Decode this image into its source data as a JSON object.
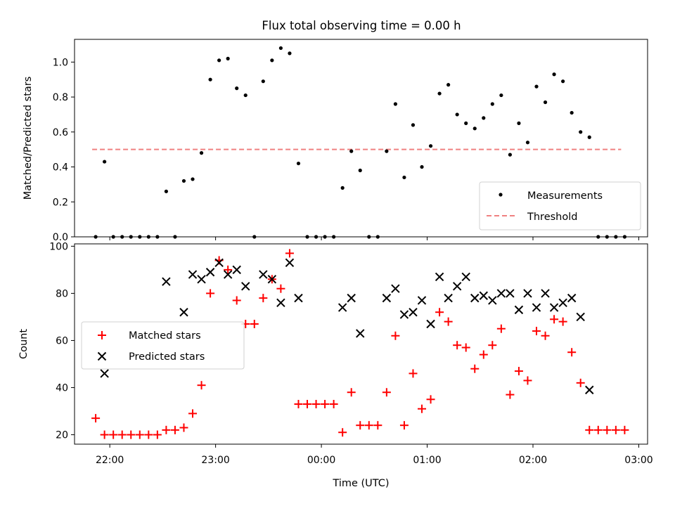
{
  "title": "Flux total observing time = 0.00 h",
  "chart_data": [
    {
      "type": "scatter",
      "ylabel": "Matched/Predicted stars",
      "ylim": [
        0,
        1.13
      ],
      "yticks": [
        "0.0",
        "0.2",
        "0.4",
        "0.6",
        "0.8",
        "1.0"
      ],
      "legend": {
        "placement": "lower-right",
        "entries": [
          {
            "label": "Measurements",
            "marker": "dot",
            "color": "#000000"
          },
          {
            "label": "Threshold",
            "marker": "dashed-line",
            "color": "#f08080"
          }
        ]
      },
      "threshold": {
        "value": 0.5,
        "x_start": "21:50",
        "x_end": "02:50"
      },
      "series": [
        {
          "name": "Measurements",
          "color": "#000000",
          "x": [
            "21:52",
            "21:57",
            "22:02",
            "22:07",
            "22:12",
            "22:17",
            "22:22",
            "22:27",
            "22:32",
            "22:37",
            "22:42",
            "22:47",
            "22:52",
            "22:57",
            "23:02",
            "23:07",
            "23:12",
            "23:17",
            "23:22",
            "23:27",
            "23:32",
            "23:37",
            "23:42",
            "23:47",
            "23:52",
            "23:57",
            "00:02",
            "00:07",
            "00:12",
            "00:17",
            "00:22",
            "00:27",
            "00:32",
            "00:37",
            "00:42",
            "00:47",
            "00:52",
            "00:57",
            "01:02",
            "01:07",
            "01:12",
            "01:17",
            "01:22",
            "01:27",
            "01:32",
            "01:37",
            "01:42",
            "01:47",
            "01:52",
            "01:57",
            "02:02",
            "02:07",
            "02:12",
            "02:17",
            "02:22",
            "02:27",
            "02:32",
            "02:37",
            "02:42",
            "02:47",
            "02:52"
          ],
          "y": [
            0.0,
            0.43,
            0.0,
            0.0,
            0.0,
            0.0,
            0.0,
            0.0,
            0.26,
            0.0,
            0.32,
            0.33,
            0.48,
            0.9,
            1.01,
            1.02,
            0.85,
            0.81,
            0.0,
            0.89,
            1.01,
            1.08,
            1.05,
            0.42,
            0.0,
            0.0,
            0.0,
            0.0,
            0.28,
            0.49,
            0.38,
            0.0,
            0.0,
            0.49,
            0.76,
            0.34,
            0.64,
            0.4,
            0.52,
            0.82,
            0.87,
            0.7,
            0.65,
            0.62,
            0.68,
            0.76,
            0.81,
            0.47,
            0.65,
            0.54,
            0.86,
            0.77,
            0.93,
            0.89,
            0.71,
            0.6,
            0.57,
            0.0,
            0.0,
            0.0,
            0.0
          ]
        }
      ]
    },
    {
      "type": "scatter",
      "xlabel": "Time (UTC)",
      "ylabel": "Count",
      "ylim": [
        16,
        101
      ],
      "yticks": [
        "20",
        "40",
        "60",
        "80",
        "100"
      ],
      "xlim": [
        "21:40",
        "03:05"
      ],
      "xticks": [
        "22:00",
        "23:00",
        "00:00",
        "01:00",
        "02:00",
        "03:00"
      ],
      "legend": {
        "placement": "center-left",
        "entries": [
          {
            "label": "Matched stars",
            "marker": "plus",
            "color": "#ff0000"
          },
          {
            "label": "Predicted stars",
            "marker": "x",
            "color": "#000000"
          }
        ]
      },
      "series": [
        {
          "name": "Matched stars",
          "marker": "plus",
          "color": "#ff0000",
          "x": [
            "21:52",
            "21:57",
            "22:02",
            "22:07",
            "22:12",
            "22:17",
            "22:22",
            "22:27",
            "22:32",
            "22:37",
            "22:42",
            "22:47",
            "22:52",
            "22:57",
            "23:02",
            "23:07",
            "23:12",
            "23:17",
            "23:22",
            "23:27",
            "23:32",
            "23:37",
            "23:42",
            "23:47",
            "23:52",
            "23:57",
            "00:02",
            "00:07",
            "00:12",
            "00:17",
            "00:22",
            "00:27",
            "00:32",
            "00:37",
            "00:42",
            "00:47",
            "00:52",
            "00:57",
            "01:02",
            "01:07",
            "01:12",
            "01:17",
            "01:22",
            "01:27",
            "01:32",
            "01:37",
            "01:42",
            "01:47",
            "01:52",
            "01:57",
            "02:02",
            "02:07",
            "02:12",
            "02:17",
            "02:22",
            "02:27",
            "02:32",
            "02:37",
            "02:42",
            "02:47",
            "02:52"
          ],
          "y": [
            27,
            20,
            20,
            20,
            20,
            20,
            20,
            20,
            22,
            22,
            23,
            29,
            41,
            80,
            94,
            90,
            77,
            67,
            67,
            78,
            86,
            82,
            97,
            33,
            33,
            33,
            33,
            33,
            21,
            38,
            24,
            24,
            24,
            38,
            62,
            24,
            46,
            31,
            35,
            72,
            68,
            58,
            57,
            48,
            54,
            58,
            65,
            37,
            47,
            43,
            64,
            62,
            69,
            68,
            55,
            42,
            22,
            22,
            22,
            22,
            22
          ]
        },
        {
          "name": "Predicted stars",
          "marker": "x",
          "color": "#000000",
          "x": [
            "21:57",
            "22:32",
            "22:42",
            "22:47",
            "22:52",
            "22:57",
            "23:02",
            "23:07",
            "23:12",
            "23:17",
            "23:27",
            "23:32",
            "23:37",
            "23:42",
            "23:47",
            "00:12",
            "00:17",
            "00:22",
            "00:37",
            "00:42",
            "00:47",
            "00:52",
            "00:57",
            "01:02",
            "01:07",
            "01:12",
            "01:17",
            "01:22",
            "01:27",
            "01:32",
            "01:37",
            "01:42",
            "01:47",
            "01:52",
            "01:57",
            "02:02",
            "02:07",
            "02:12",
            "02:17",
            "02:22",
            "02:27",
            "02:32"
          ],
          "y": [
            46,
            85,
            72,
            88,
            86,
            89,
            93,
            88,
            90,
            83,
            88,
            86,
            76,
            93,
            78,
            74,
            78,
            63,
            78,
            82,
            71,
            72,
            77,
            67,
            87,
            78,
            83,
            87,
            78,
            79,
            77,
            80,
            80,
            73,
            80,
            74,
            80,
            74,
            76,
            78,
            70,
            39
          ]
        }
      ]
    }
  ]
}
